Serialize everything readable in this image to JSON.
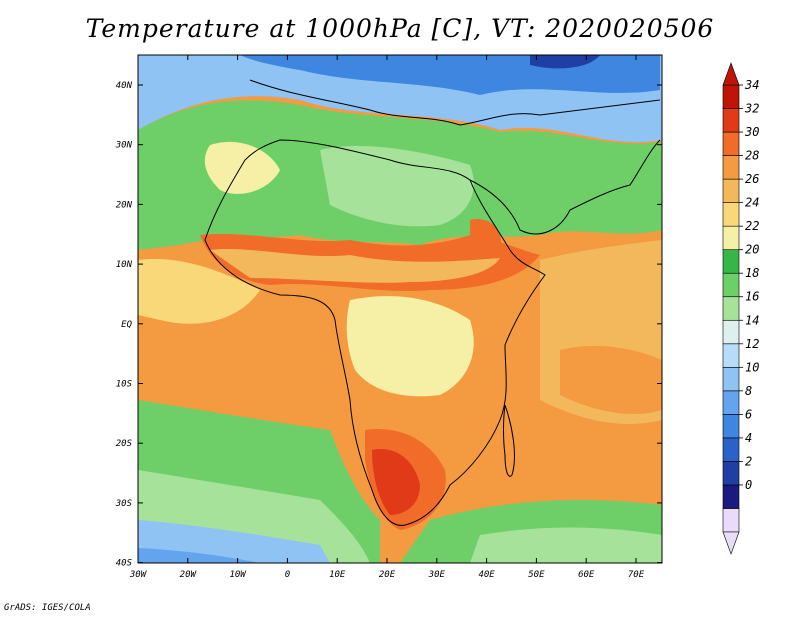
{
  "title": "Temperature at 1000hPa [C], VT: 2020020506",
  "credit": "GrADS: IGES/COLA",
  "map": {
    "lat_labels": [
      "40N",
      "30N",
      "20N",
      "10N",
      "EQ",
      "10S",
      "20S",
      "30S",
      "40S"
    ],
    "lon_labels": [
      "30W",
      "20W",
      "10W",
      "0",
      "10E",
      "20E",
      "30E",
      "40E",
      "50E",
      "60E",
      "70E"
    ]
  },
  "colorbar": {
    "labels": [
      "34",
      "32",
      "30",
      "28",
      "26",
      "24",
      "22",
      "20",
      "18",
      "16",
      "14",
      "12",
      "10",
      "8",
      "6",
      "4",
      "2",
      "0"
    ],
    "colors": [
      "#e8dcf8",
      "#1a1a80",
      "#1f3fa5",
      "#2a62c8",
      "#3e86e0",
      "#64a4ee",
      "#8ec3f4",
      "#b6dcf8",
      "#ddf0f0",
      "#a6e29a",
      "#6ecf68",
      "#36b548",
      "#f6efa6",
      "#f8d878",
      "#f4b85c",
      "#f49a40",
      "#f06c28",
      "#e03a18",
      "#c01408"
    ],
    "top_arrow_color": "#c01408",
    "bottom_arrow_color": "#e8dcf8"
  }
}
